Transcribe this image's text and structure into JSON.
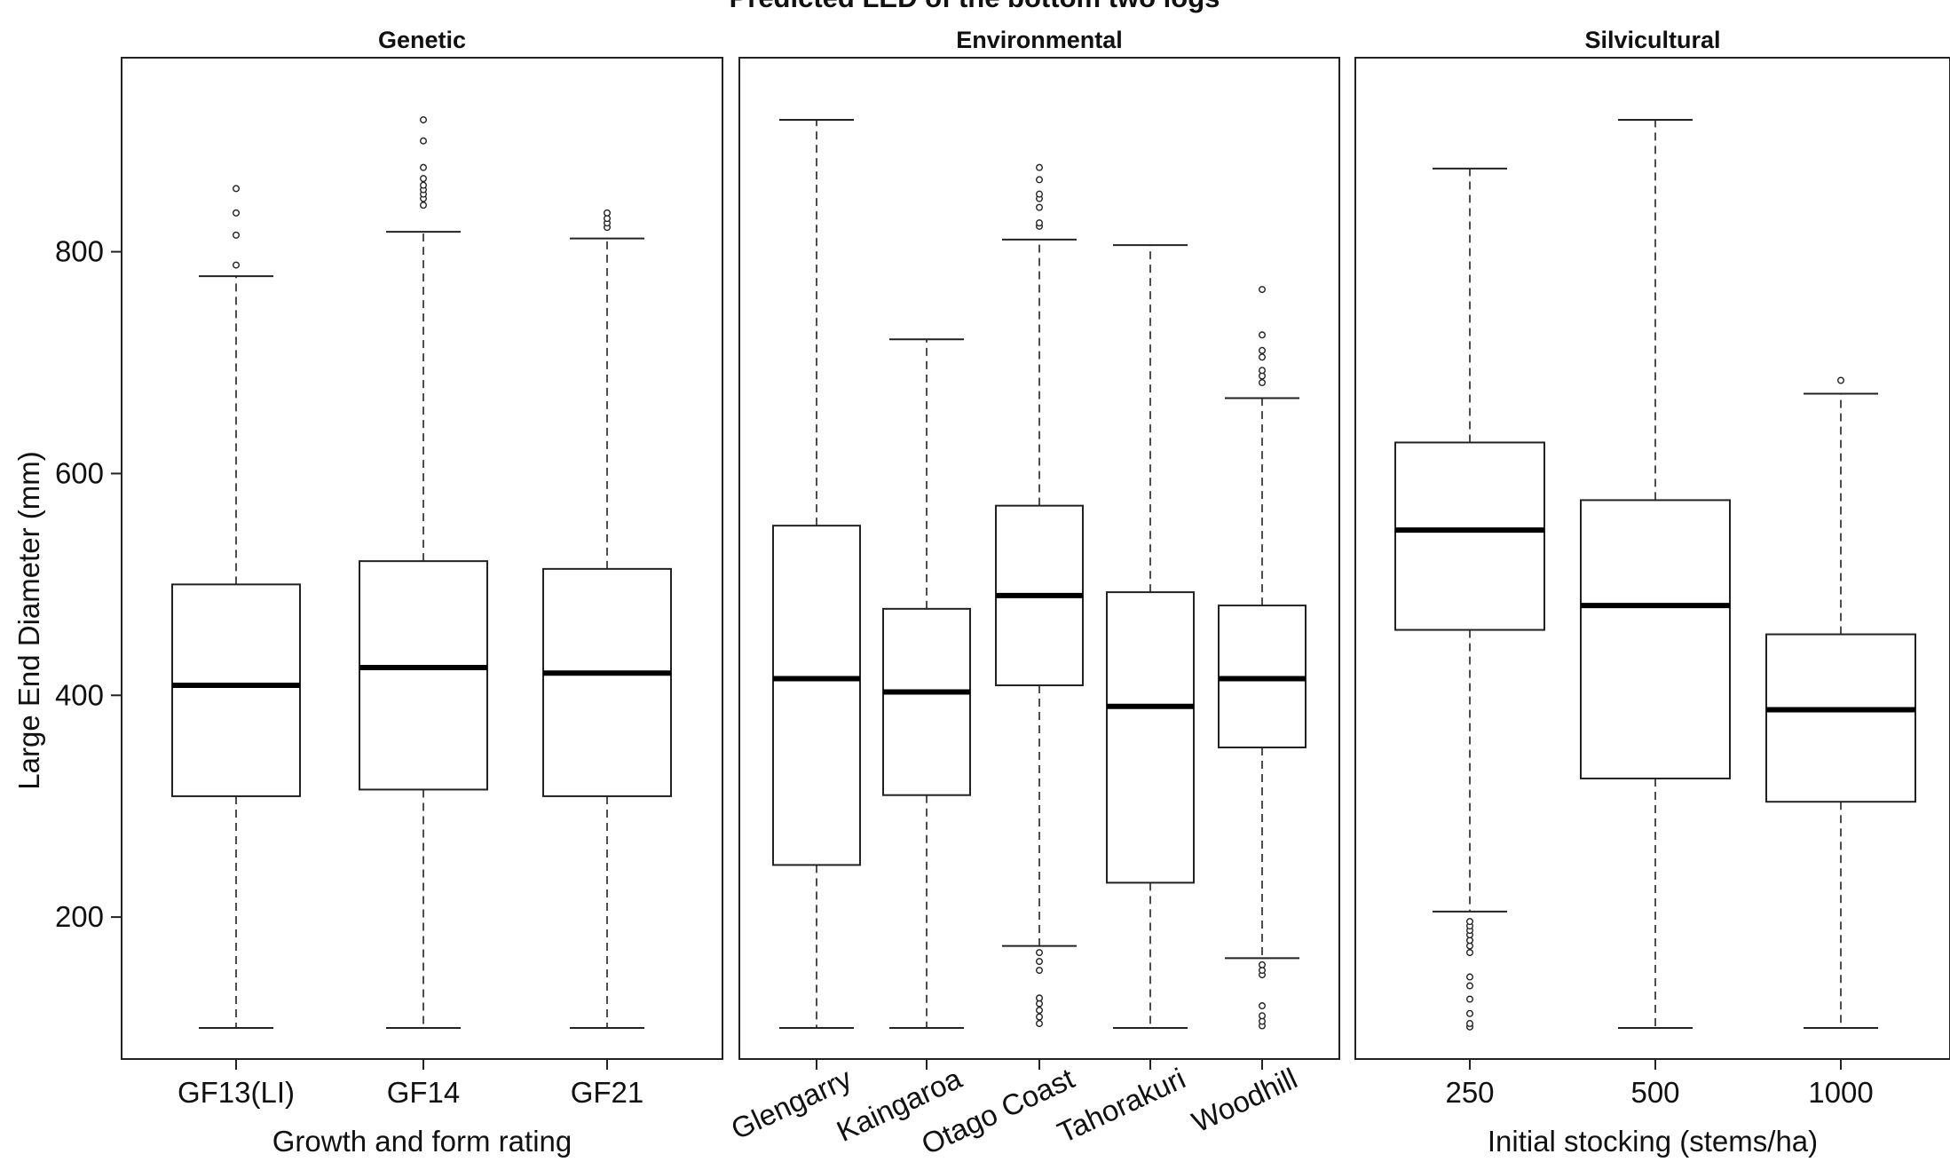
{
  "chart_data": {
    "type": "box",
    "title": "Predicted LED of the bottom two logs",
    "ylabel": "Large End Diameter (mm)",
    "ylim": [
      72,
      975
    ],
    "yticks": [
      200,
      400,
      600,
      800
    ],
    "panels": [
      {
        "title": "Genetic",
        "xlabel": "Growth and form rating",
        "rotate_labels": false,
        "categories": [
          {
            "label": "GF13(LI)",
            "whisker_low": 100,
            "q1": 309,
            "median": 409,
            "q3": 500,
            "whisker_high": 778,
            "outliers_high": [
              788,
              815,
              835,
              857
            ],
            "outliers_low": []
          },
          {
            "label": "GF14",
            "whisker_low": 100,
            "q1": 315,
            "median": 425,
            "q3": 521,
            "whisker_high": 818,
            "outliers_high": [
              842,
              848,
              852,
              856,
              860,
              866,
              876,
              900,
              919
            ],
            "outliers_low": []
          },
          {
            "label": "GF21",
            "whisker_low": 100,
            "q1": 309,
            "median": 420,
            "q3": 514,
            "whisker_high": 812,
            "outliers_high": [
              822,
              826,
              830,
              835
            ],
            "outliers_low": []
          }
        ]
      },
      {
        "title": "Environmental",
        "xlabel": "",
        "rotate_labels": true,
        "categories": [
          {
            "label": "Glengarry",
            "whisker_low": 100,
            "q1": 247,
            "median": 415,
            "q3": 553,
            "whisker_high": 919,
            "outliers_high": [],
            "outliers_low": []
          },
          {
            "label": "Kaingaroa",
            "whisker_low": 100,
            "q1": 310,
            "median": 403,
            "q3": 478,
            "whisker_high": 721,
            "outliers_high": [],
            "outliers_low": []
          },
          {
            "label": "Otago Coast",
            "whisker_low": 174,
            "q1": 409,
            "median": 490,
            "q3": 571,
            "whisker_high": 811,
            "outliers_high": [
              823,
              826,
              840,
              848,
              852,
              865,
              876
            ],
            "outliers_low": [
              104,
              110,
              116,
              122,
              127,
              152,
              160,
              168
            ]
          },
          {
            "label": "Tahorakuri",
            "whisker_low": 100,
            "q1": 231,
            "median": 390,
            "q3": 493,
            "whisker_high": 806,
            "outliers_high": [],
            "outliers_low": []
          },
          {
            "label": "Woodhill",
            "whisker_low": 163,
            "q1": 353,
            "median": 415,
            "q3": 481,
            "whisker_high": 668,
            "outliers_high": [
              682,
              688,
              693,
              705,
              711,
              725,
              766
            ],
            "outliers_low": [
              102,
              106,
              111,
              120,
              148,
              152,
              157
            ]
          }
        ]
      },
      {
        "title": "Silvicultural",
        "xlabel": "Initial stocking (stems/ha)",
        "rotate_labels": false,
        "categories": [
          {
            "label": "250",
            "whisker_low": 205,
            "q1": 459,
            "median": 549,
            "q3": 628,
            "whisker_high": 875,
            "outliers_high": [],
            "outliers_low": [
              101,
              104,
              113,
              126,
              138,
              146,
              168,
              174,
              179,
              184,
              188,
              192,
              196
            ]
          },
          {
            "label": "500",
            "whisker_low": 100,
            "q1": 325,
            "median": 481,
            "q3": 576,
            "whisker_high": 919,
            "outliers_high": [],
            "outliers_low": []
          },
          {
            "label": "1000",
            "whisker_low": 100,
            "q1": 304,
            "median": 387,
            "q3": 455,
            "whisker_high": 672,
            "outliers_high": [
              684
            ],
            "outliers_low": []
          }
        ]
      }
    ]
  }
}
